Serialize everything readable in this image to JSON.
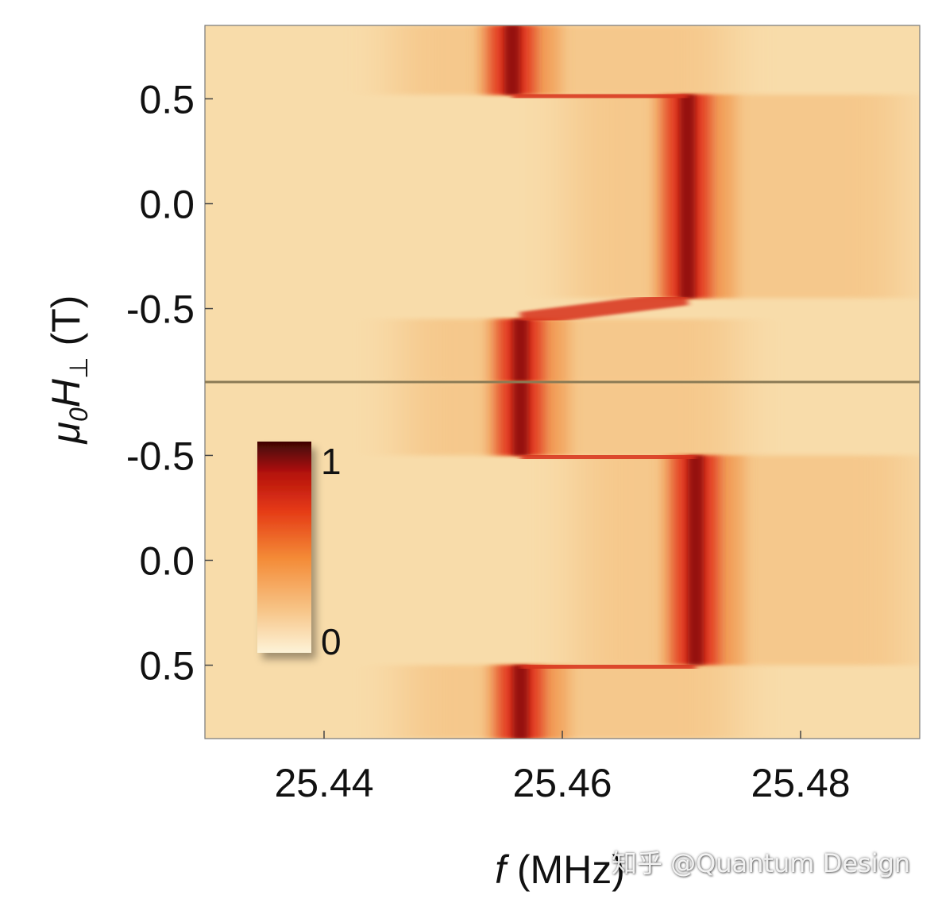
{
  "chart_data": {
    "type": "heatmap",
    "title": "",
    "xlabel": {
      "italic": "f",
      "rest": " (MHz)"
    },
    "ylabel": {
      "mu": "μ",
      "sub0": "0",
      "H": "H",
      "perp": "⊥",
      "unit": " (T)"
    },
    "xlim": [
      25.43,
      25.49
    ],
    "x_ticks": [
      25.44,
      25.46,
      25.48
    ],
    "x_tick_labels": [
      "25.44",
      "25.46",
      "25.48"
    ],
    "y_tick_labels": [
      "0.5",
      "0.0",
      "-0.5",
      "-0.5",
      "0.0",
      "0.5"
    ],
    "panels": [
      {
        "name": "upper",
        "y_range_top_to_bottom": [
          0.85,
          -0.85
        ],
        "resonance": [
          {
            "y_from": 0.85,
            "y_to": 0.52,
            "f": 25.4558
          },
          {
            "y_from": 0.52,
            "y_to": -0.45,
            "f": 25.4705
          },
          {
            "y_from": -0.45,
            "y_to": -0.55,
            "f": 25.463,
            "transition": true
          },
          {
            "y_from": -0.55,
            "y_to": -0.85,
            "f": 25.4565
          }
        ]
      },
      {
        "name": "lower",
        "y_range_top_to_bottom": [
          -0.85,
          0.85
        ],
        "resonance": [
          {
            "y_from": -0.85,
            "y_to": -0.5,
            "f": 25.4565
          },
          {
            "y_from": -0.5,
            "y_to": 0.5,
            "f": 25.4712
          },
          {
            "y_from": 0.5,
            "y_to": 0.85,
            "f": 25.4565
          }
        ]
      }
    ],
    "colorbar": {
      "min_label": "0",
      "max_label": "1",
      "colors": [
        "#fdf3d8",
        "#f7c588",
        "#f48a36",
        "#e43815",
        "#b5120e",
        "#3d0505"
      ]
    },
    "background_color": "#f8dcaa"
  },
  "watermark": "知乎 @Quantum Design"
}
